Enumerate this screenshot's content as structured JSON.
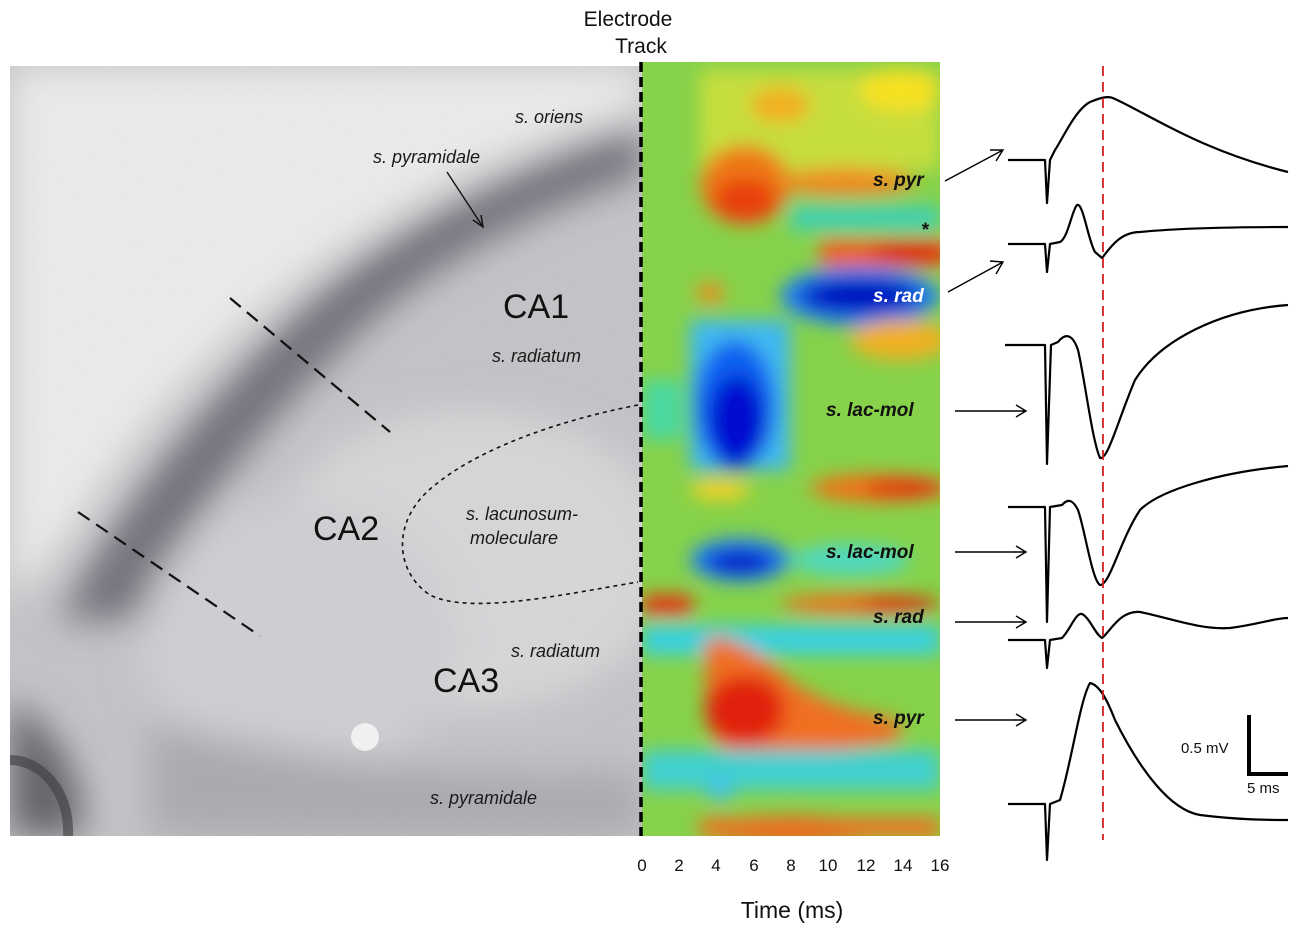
{
  "header": {
    "line1": "Electrode",
    "line2": "Track"
  },
  "histology": {
    "regions": [
      "CA1",
      "CA2",
      "CA3"
    ],
    "layers": {
      "oriens": "s. oriens",
      "pyramidale_top": "s. pyramidale",
      "radiatum_top": "s. radiatum",
      "lacmol_1": "s. lacunosum-",
      "lacmol_2": "moleculare",
      "radiatum_bottom": "s. radiatum",
      "pyramidale_bottom": "s. pyramidale"
    }
  },
  "csd_map": {
    "labels": [
      "s. pyr",
      "*",
      "s. rad",
      "s. lac-mol",
      "s. lac-mol",
      "s. rad",
      "s. pyr"
    ],
    "x_ticks": [
      "0",
      "2",
      "4",
      "6",
      "8",
      "10",
      "12",
      "14",
      "16"
    ],
    "xlabel": "Time (ms)",
    "colors": {
      "sink": "#0010c8",
      "source": "#e02000",
      "background": "#7fd24a"
    }
  },
  "traces": {
    "scale_voltage": "0.5 mV",
    "scale_time": "5 ms",
    "marker_color": "#d42020"
  }
}
